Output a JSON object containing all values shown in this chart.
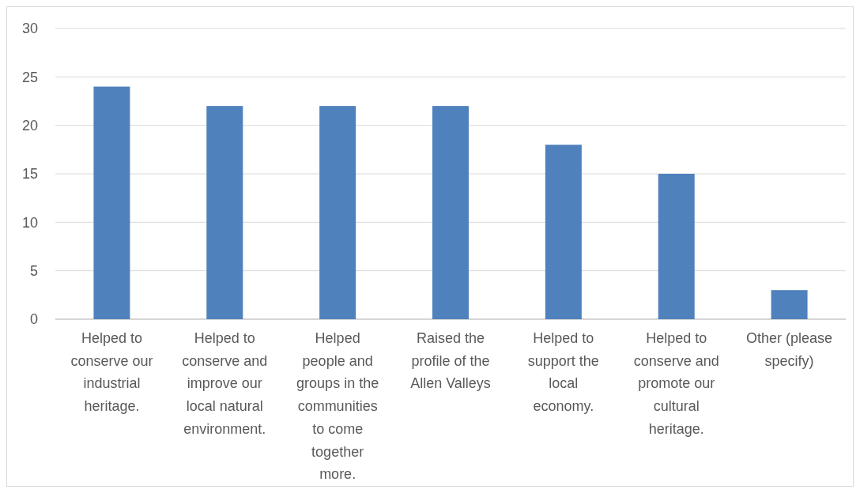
{
  "chart_data": {
    "type": "bar",
    "categories": [
      "Helped to conserve our industrial heritage.",
      "Helped to conserve and improve our local natural environment.",
      "Helped people and groups in the communities to come together more.",
      "Raised the profile of the Allen Valleys",
      "Helped to support the local economy.",
      "Helped to conserve and promote our cultural heritage.",
      "Other (please specify)"
    ],
    "values": [
      24,
      22,
      22,
      22,
      18,
      15,
      3
    ],
    "color": "#4f81bd",
    "ylim": [
      0,
      30
    ],
    "yticks": [
      0,
      5,
      10,
      15,
      20,
      25,
      30
    ],
    "grid": "y"
  }
}
